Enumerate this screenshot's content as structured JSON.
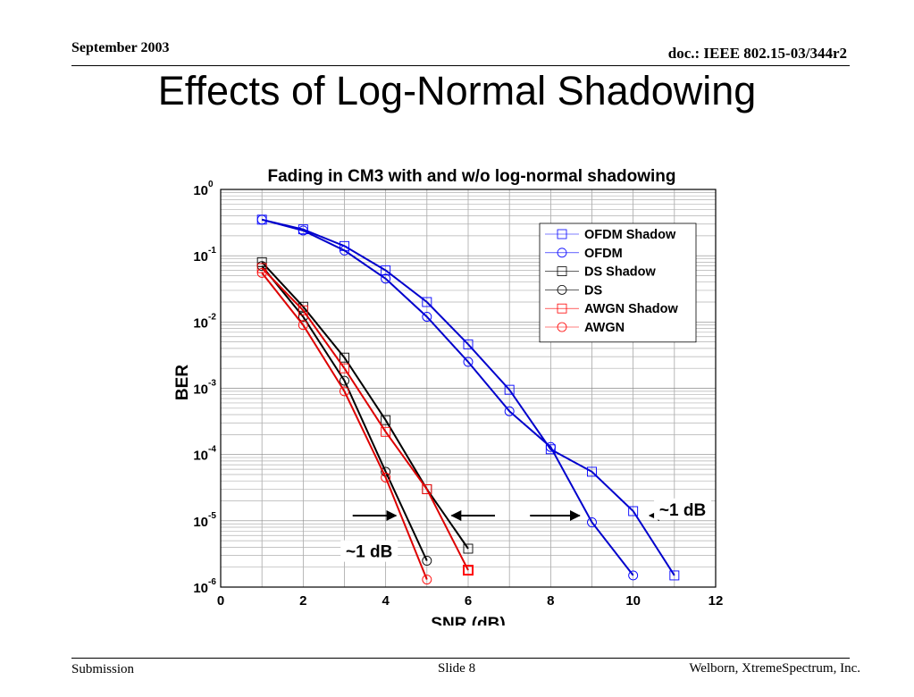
{
  "header": {
    "date": "September 2003",
    "doc_id": "doc.: IEEE 802.15-03/344r2"
  },
  "slide_title": "Effects of Log-Normal Shadowing",
  "footer": {
    "left": "Submission",
    "center": "Slide 8",
    "right": "Welborn, XtremeSpectrum, Inc."
  },
  "chart_data": {
    "type": "line",
    "title": "Fading in CM3 with and w/o log-normal shadowing",
    "xlabel": "SNR (dB)",
    "ylabel": "BER",
    "xlim": [
      0,
      12
    ],
    "ylim": [
      1e-06,
      1
    ],
    "yscale": "log",
    "grid": true,
    "legend_position": "top-right",
    "x_ticks": [
      0,
      2,
      4,
      6,
      8,
      10,
      12
    ],
    "y_tick_exponents": [
      0,
      -1,
      -2,
      -3,
      -4,
      -5,
      -6
    ],
    "y_tick_base": "10",
    "series": [
      {
        "name": "OFDM Shadow",
        "marker": "square",
        "color": "#0000ff",
        "line_color": "#0000cc",
        "x": [
          1,
          2,
          3,
          4,
          5,
          6,
          7,
          8,
          9,
          10,
          11
        ],
        "y": [
          0.35,
          0.25,
          0.14,
          0.06,
          0.02,
          0.0046,
          0.00095,
          0.00012,
          5.5e-05,
          1.4e-05,
          1.5e-06
        ]
      },
      {
        "name": "OFDM",
        "marker": "circle",
        "color": "#0000ff",
        "line_color": "#0000cc",
        "x": [
          1,
          2,
          3,
          4,
          5,
          6,
          7,
          8,
          9,
          10
        ],
        "y": [
          0.35,
          0.24,
          0.12,
          0.045,
          0.012,
          0.0025,
          0.00045,
          0.00013,
          9.5e-06,
          1.5e-06
        ]
      },
      {
        "name": "DS Shadow",
        "marker": "square",
        "color": "#000000",
        "line_color": "#000000",
        "x": [
          1,
          2,
          3,
          4,
          5,
          6
        ],
        "y": [
          0.08,
          0.017,
          0.0029,
          0.00033,
          3e-05,
          3.8e-06
        ]
      },
      {
        "name": "DS",
        "marker": "circle",
        "color": "#000000",
        "line_color": "#000000",
        "x": [
          1,
          2,
          3,
          4,
          5
        ],
        "y": [
          0.07,
          0.012,
          0.0013,
          5.5e-05,
          2.5e-06
        ]
      },
      {
        "name": "AWGN Shadow",
        "marker": "square",
        "color": "#ff0000",
        "line_color": "#dd0000",
        "x": [
          1,
          2,
          3,
          4,
          5,
          6
        ],
        "y": [
          0.065,
          0.015,
          0.002,
          0.00022,
          3e-05,
          1.8e-06
        ]
      },
      {
        "name": "AWGN",
        "marker": "circle",
        "color": "#ff0000",
        "line_color": "#dd0000",
        "x": [
          1,
          2,
          3,
          4,
          5
        ],
        "y": [
          0.055,
          0.009,
          0.0009,
          4.5e-05,
          1.3e-06
        ]
      }
    ],
    "annotations": [
      {
        "text": "~1 dB",
        "x": 3.6,
        "y": 3.5e-06
      },
      {
        "text": "~1 dB",
        "x": 11.2,
        "y": 1.5e-05
      }
    ],
    "arrows": [
      {
        "x_from": 3.2,
        "x_to": 4.25,
        "y": 1.2e-05
      },
      {
        "x_from": 6.65,
        "x_to": 5.6,
        "y": 1.2e-05
      },
      {
        "x_from": 7.5,
        "x_to": 8.7,
        "y": 1.2e-05
      },
      {
        "x_from": 11.3,
        "x_to": 10.4,
        "y": 1.2e-05
      }
    ]
  }
}
